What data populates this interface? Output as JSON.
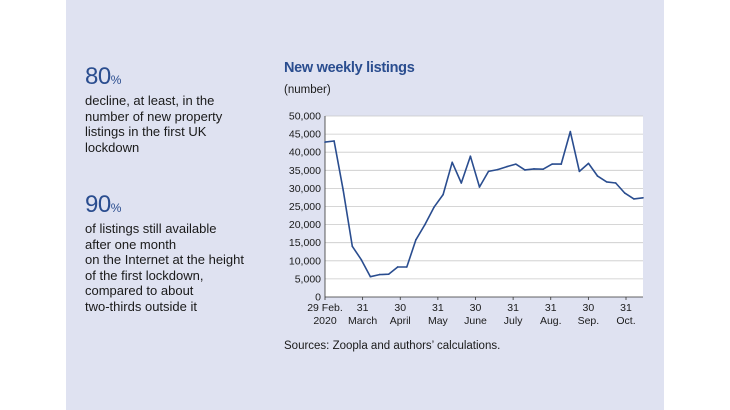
{
  "stats": [
    {
      "value": "80",
      "unit": "%",
      "text": "decline, at least, in the\nnumber of new property\nlistings in the first UK\nlockdown"
    },
    {
      "value": "90",
      "unit": "%",
      "text": "of listings still available\nafter one month\non the Internet at the height\nof the first lockdown,\ncompared to about\ntwo-thirds outside it"
    }
  ],
  "chart_data": {
    "type": "line",
    "title": "New weekly listings",
    "ylabel": "(number)",
    "source": "Sources: Zoopla and authors’ calculations.",
    "ylim": [
      0,
      50000
    ],
    "yticks": [
      0,
      5000,
      10000,
      15000,
      20000,
      25000,
      30000,
      35000,
      40000,
      45000,
      50000
    ],
    "ytick_labels": [
      "0",
      "5,000",
      "10,000",
      "15,000",
      "20,000",
      "25,000",
      "30,000",
      "35,000",
      "40,000",
      "45,000",
      "50,000"
    ],
    "xtick_labels": [
      [
        "29 Feb.",
        "2020"
      ],
      [
        "31",
        "March"
      ],
      [
        "30",
        "April"
      ],
      [
        "31",
        "May"
      ],
      [
        "30",
        "June"
      ],
      [
        "31",
        "July"
      ],
      [
        "31",
        "Aug."
      ],
      [
        "30",
        "Sep."
      ],
      [
        "31",
        "Oct."
      ]
    ],
    "grid": true,
    "color": "#2a4d8f",
    "series": [
      {
        "values": [
          42800,
          43100,
          29500,
          14000,
          10300,
          5600,
          6200,
          6300,
          8300,
          8300,
          15800,
          20000,
          24800,
          28300,
          37200,
          31500,
          38900,
          30400,
          34700,
          35200,
          36000,
          36700,
          35100,
          35400,
          35300,
          36700,
          36700,
          45700,
          34700,
          36900,
          33400,
          31800,
          31500,
          28700,
          27100,
          27400
        ]
      }
    ]
  }
}
